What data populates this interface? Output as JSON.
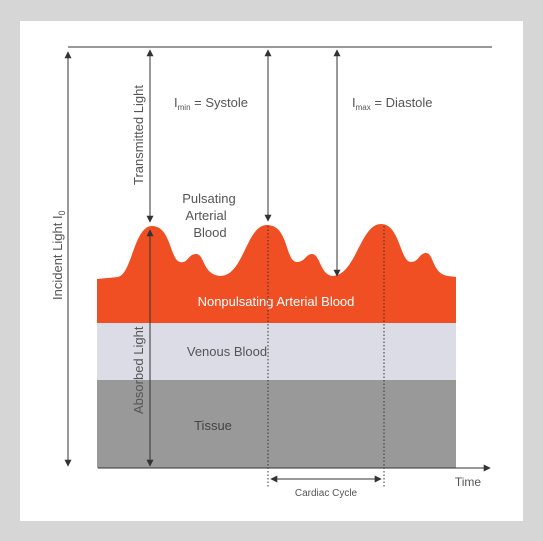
{
  "diagram": {
    "layers": {
      "nonpulsating": "Nonpulsating Arterial Blood",
      "venous": "Venous Blood",
      "tissue": "Tissue"
    },
    "pulsating_label": [
      "Pulsating",
      "Arterial",
      "Blood"
    ],
    "transmitted_light": "Transmitted Light",
    "absorbed_light": "Absorbed Light",
    "incident_light": {
      "text": "Incident Light I",
      "sub": "0"
    },
    "i_min": {
      "letter": "I",
      "sub": "min",
      "rest": " = Systole"
    },
    "i_max": {
      "letter": "I",
      "sub": "max",
      "rest": " = Diastole"
    },
    "time_label": "Time",
    "cardiac_cycle": "Cardiac Cycle",
    "colors": {
      "pulsating": "#f04e23",
      "nonpulsating": "#f04e23",
      "venous": "#dcdce6",
      "tissue": "#999999",
      "frame": "#d6d6d6",
      "line": "#333333"
    }
  }
}
